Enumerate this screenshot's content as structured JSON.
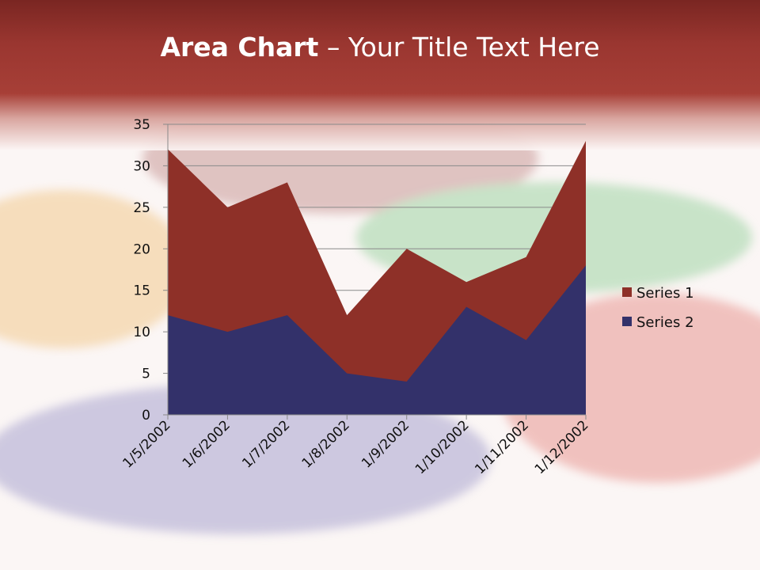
{
  "slide": {
    "title_bold": "Area Chart",
    "title_sep": " – ",
    "title_rest": "Your Title Text Here"
  },
  "colors": {
    "header": "#9a3630",
    "series1": "#8e3028",
    "series2": "#33316a"
  },
  "chart_data": {
    "type": "area",
    "stacked": false,
    "categories": [
      "1/5/2002",
      "1/6/2002",
      "1/7/2002",
      "1/8/2002",
      "1/9/2002",
      "1/10/2002",
      "1/11/2002",
      "1/12/2002"
    ],
    "series": [
      {
        "name": "Series 1",
        "values": [
          32,
          25,
          28,
          12,
          20,
          16,
          19,
          33
        ],
        "color": "#8e3028"
      },
      {
        "name": "Series 2",
        "values": [
          12,
          10,
          12,
          5,
          4,
          13,
          9,
          18
        ],
        "color": "#33316a"
      }
    ],
    "ylim": [
      0,
      35
    ],
    "yticks": [
      0,
      5,
      10,
      15,
      20,
      25,
      30,
      35
    ],
    "grid": true,
    "legend": "right"
  }
}
